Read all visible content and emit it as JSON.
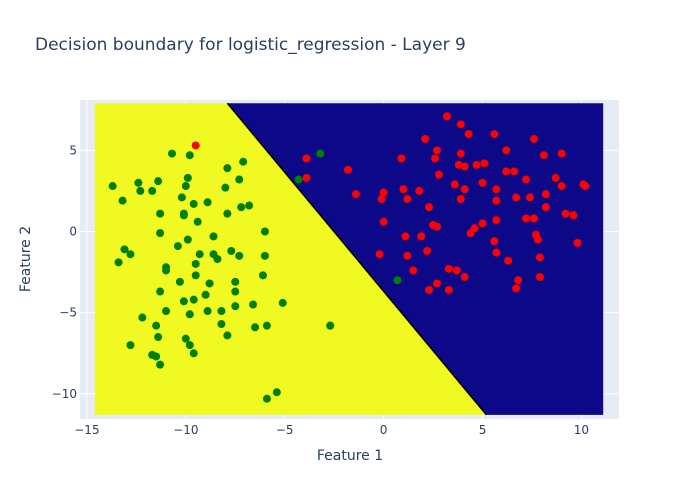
{
  "chart_data": {
    "type": "scatter",
    "title": "Decision boundary for logistic_regression - Layer 9",
    "xlabel": "Feature 1",
    "ylabel": "Feature 2",
    "xlim": [
      -15.35,
      11.9
    ],
    "ylim": [
      -11.55,
      8.1
    ],
    "x_ticks": [
      -15,
      -10,
      -5,
      0,
      5,
      10
    ],
    "y_ticks": [
      -10,
      -5,
      0,
      5
    ],
    "x_tick_labels": [
      "−15",
      "−10",
      "−5",
      "0",
      "5",
      "10"
    ],
    "y_tick_labels": [
      "−10",
      "−5",
      "0",
      "5"
    ],
    "grid": true,
    "legend": "none",
    "decision_regions": {
      "domain_x": [
        -14.6,
        11.1
      ],
      "domain_y": [
        -11.3,
        7.9
      ],
      "boundary_line": [
        [
          -7.9,
          7.9
        ],
        [
          5.2,
          -11.3
        ]
      ],
      "left_region_color": "#f0f921",
      "right_region_color": "#0d0887",
      "boundary_color": "#000000"
    },
    "plot_background": "#e5ecf6",
    "series": [
      {
        "color": "#008000",
        "points": [
          [
            -13.7,
            2.8
          ],
          [
            -13.2,
            1.9
          ],
          [
            -12.4,
            3.0
          ],
          [
            -12.3,
            2.5
          ],
          [
            -11.7,
            2.5
          ],
          [
            -11.4,
            3.1
          ],
          [
            -10.7,
            4.8
          ],
          [
            -9.8,
            4.7
          ],
          [
            -9.9,
            3.3
          ],
          [
            -10.0,
            2.8
          ],
          [
            -10.2,
            2.1
          ],
          [
            -9.6,
            1.7
          ],
          [
            -8.9,
            1.8
          ],
          [
            -10.1,
            1.1
          ],
          [
            -10.1,
            1.0
          ],
          [
            -9.4,
            0.6
          ],
          [
            -11.3,
            1.1
          ],
          [
            -11.3,
            -0.1
          ],
          [
            -9.9,
            -0.5
          ],
          [
            -8.6,
            -0.3
          ],
          [
            -10.4,
            -0.9
          ],
          [
            -13.1,
            -1.1
          ],
          [
            -12.8,
            -1.4
          ],
          [
            -13.4,
            -1.9
          ],
          [
            -9.3,
            -1.4
          ],
          [
            -8.6,
            -1.4
          ],
          [
            -8.4,
            -1.7
          ],
          [
            -9.5,
            -2.0
          ],
          [
            -11.0,
            -2.2
          ],
          [
            -11.0,
            -2.4
          ],
          [
            -9.5,
            -2.7
          ],
          [
            -10.3,
            -3.1
          ],
          [
            -8.8,
            -3.2
          ],
          [
            -11.3,
            -3.7
          ],
          [
            -9.0,
            -3.9
          ],
          [
            -9.6,
            -4.2
          ],
          [
            -10.1,
            -4.3
          ],
          [
            -11.0,
            -4.9
          ],
          [
            -9.8,
            -5.1
          ],
          [
            -8.9,
            -4.9
          ],
          [
            -8.2,
            -4.9
          ],
          [
            -7.5,
            -4.6
          ],
          [
            -12.2,
            -5.3
          ],
          [
            -11.5,
            -5.8
          ],
          [
            -8.2,
            -5.7
          ],
          [
            -7.9,
            -6.4
          ],
          [
            -11.4,
            -6.5
          ],
          [
            -10.0,
            -6.6
          ],
          [
            -12.8,
            -7.0
          ],
          [
            -9.8,
            -7.0
          ],
          [
            -9.6,
            -7.5
          ],
          [
            -11.7,
            -7.6
          ],
          [
            -11.5,
            -7.7
          ],
          [
            -11.3,
            -8.2
          ],
          [
            -7.1,
            4.3
          ],
          [
            -7.9,
            3.9
          ],
          [
            -7.3,
            3.2
          ],
          [
            -8.0,
            2.7
          ],
          [
            -6.8,
            1.6
          ],
          [
            -7.2,
            1.5
          ],
          [
            -7.9,
            1.1
          ],
          [
            -6.0,
            0.0
          ],
          [
            -7.7,
            -1.2
          ],
          [
            -7.3,
            -1.5
          ],
          [
            -6.0,
            -1.5
          ],
          [
            -6.1,
            -2.7
          ],
          [
            -7.5,
            -3.1
          ],
          [
            -7.5,
            -3.7
          ],
          [
            -6.6,
            -4.5
          ],
          [
            -5.1,
            -4.4
          ],
          [
            -5.9,
            -5.8
          ],
          [
            -6.5,
            -5.9
          ],
          [
            -2.7,
            -5.8
          ],
          [
            -2.7,
            -5.8
          ],
          [
            -5.4,
            -9.9
          ],
          [
            -5.9,
            -10.3
          ],
          [
            -3.2,
            4.8
          ],
          [
            -4.3,
            3.2
          ],
          [
            0.7,
            -3.0
          ]
        ]
      },
      {
        "color": "#ff0000",
        "points": [
          [
            -9.5,
            5.3
          ],
          [
            -3.9,
            3.3
          ],
          [
            -3.9,
            4.5
          ],
          [
            -1.8,
            3.8
          ],
          [
            -1.4,
            2.3
          ],
          [
            -0.1,
            2.0
          ],
          [
            0.0,
            2.4
          ],
          [
            0.0,
            0.6
          ],
          [
            -0.2,
            -1.4
          ],
          [
            0.9,
            4.5
          ],
          [
            1.0,
            2.6
          ],
          [
            1.2,
            2.0
          ],
          [
            1.8,
            2.5
          ],
          [
            2.1,
            5.7
          ],
          [
            2.6,
            4.5
          ],
          [
            2.7,
            5.0
          ],
          [
            2.8,
            3.5
          ],
          [
            2.3,
            1.5
          ],
          [
            1.1,
            -0.3
          ],
          [
            1.9,
            -0.3
          ],
          [
            1.2,
            -1.5
          ],
          [
            2.2,
            -1.2
          ],
          [
            1.5,
            -2.4
          ],
          [
            2.5,
            0.4
          ],
          [
            2.7,
            0.3
          ],
          [
            2.3,
            -3.6
          ],
          [
            2.7,
            -3.2
          ],
          [
            3.3,
            -3.6
          ],
          [
            3.2,
            7.1
          ],
          [
            3.9,
            6.6
          ],
          [
            4.3,
            6.0
          ],
          [
            3.9,
            4.8
          ],
          [
            4.1,
            4.0
          ],
          [
            3.8,
            4.1
          ],
          [
            4.7,
            4.1
          ],
          [
            5.1,
            4.2
          ],
          [
            3.6,
            2.9
          ],
          [
            4.1,
            2.6
          ],
          [
            3.9,
            2.0
          ],
          [
            5.0,
            3.0
          ],
          [
            5.7,
            2.6
          ],
          [
            5.7,
            1.9
          ],
          [
            5.0,
            0.5
          ],
          [
            4.6,
            0.2
          ],
          [
            4.4,
            -0.1
          ],
          [
            5.7,
            0.7
          ],
          [
            5.6,
            -0.6
          ],
          [
            5.7,
            -1.3
          ],
          [
            6.3,
            -1.8
          ],
          [
            3.3,
            -2.3
          ],
          [
            3.7,
            -2.4
          ],
          [
            4.1,
            -2.8
          ],
          [
            5.6,
            6.0
          ],
          [
            6.2,
            5.0
          ],
          [
            6.2,
            3.7
          ],
          [
            6.6,
            3.7
          ],
          [
            6.7,
            2.1
          ],
          [
            7.2,
            3.2
          ],
          [
            7.6,
            5.7
          ],
          [
            8.1,
            4.7
          ],
          [
            7.4,
            2.1
          ],
          [
            7.6,
            0.8
          ],
          [
            7.2,
            0.8
          ],
          [
            7.7,
            -0.2
          ],
          [
            7.8,
            -0.5
          ],
          [
            7.9,
            -1.6
          ],
          [
            7.9,
            -2.8
          ],
          [
            6.8,
            -3.0
          ],
          [
            6.7,
            -3.5
          ],
          [
            8.2,
            2.3
          ],
          [
            8.2,
            1.5
          ],
          [
            8.7,
            3.3
          ],
          [
            9.0,
            2.8
          ],
          [
            9.0,
            4.8
          ],
          [
            9.2,
            1.1
          ],
          [
            9.6,
            1.0
          ],
          [
            10.1,
            2.9
          ],
          [
            10.2,
            2.8
          ],
          [
            9.8,
            -0.7
          ]
        ]
      }
    ]
  }
}
